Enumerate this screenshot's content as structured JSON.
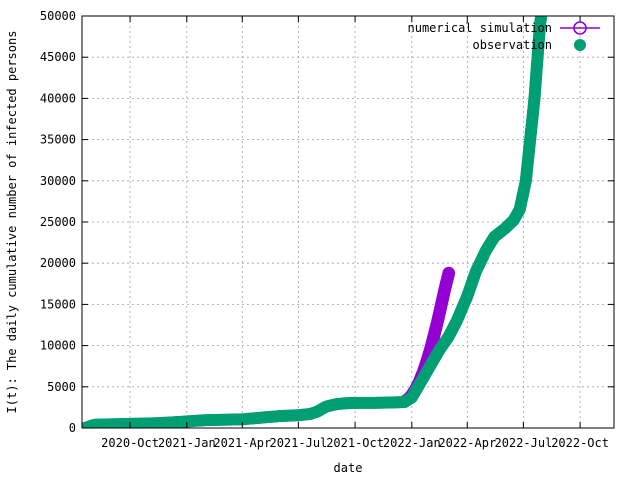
{
  "chart_data": {
    "type": "scatter",
    "title": "",
    "xlabel": "date",
    "ylabel": "I(t): The daily cumulative number of infected persons",
    "xlim": [
      "2020-07-15",
      "2022-11-25"
    ],
    "ylim": [
      0,
      50000
    ],
    "grid": true,
    "legend_position": "top-right",
    "yticks": [
      0,
      5000,
      10000,
      15000,
      20000,
      25000,
      30000,
      35000,
      40000,
      45000,
      50000
    ],
    "xticks": [
      {
        "date": "2020-10-01",
        "label": "2020-Oct"
      },
      {
        "date": "2021-01-01",
        "label": "2021-Jan"
      },
      {
        "date": "2021-04-01",
        "label": "2021-Apr"
      },
      {
        "date": "2021-07-01",
        "label": "2021-Jul"
      },
      {
        "date": "2021-10-01",
        "label": "2021-Oct"
      },
      {
        "date": "2022-01-01",
        "label": "2022-Jan"
      },
      {
        "date": "2022-04-01",
        "label": "2022-Apr"
      },
      {
        "date": "2022-07-01",
        "label": "2022-Jul"
      },
      {
        "date": "2022-10-01",
        "label": "2022-Oct"
      }
    ],
    "series": [
      {
        "name": "numerical simulation",
        "marker": "open-circle",
        "color": "#9400d3",
        "points": [
          [
            "2021-12-20",
            3200
          ],
          [
            "2021-12-26",
            3500
          ],
          [
            "2022-01-01",
            4000
          ],
          [
            "2022-01-07",
            4700
          ],
          [
            "2022-01-13",
            5600
          ],
          [
            "2022-01-19",
            6700
          ],
          [
            "2022-01-25",
            8000
          ],
          [
            "2022-01-31",
            9500
          ],
          [
            "2022-02-06",
            11200
          ],
          [
            "2022-02-12",
            13000
          ],
          [
            "2022-02-18",
            15000
          ],
          [
            "2022-02-24",
            17000
          ],
          [
            "2022-03-02",
            18800
          ]
        ]
      },
      {
        "name": "observation",
        "marker": "filled-circle",
        "color": "#009e73",
        "points": [
          [
            "2020-07-20",
            0
          ],
          [
            "2020-07-27",
            200
          ],
          [
            "2020-08-05",
            400
          ],
          [
            "2020-09-01",
            450
          ],
          [
            "2020-10-01",
            500
          ],
          [
            "2020-11-01",
            550
          ],
          [
            "2020-12-01",
            650
          ],
          [
            "2021-01-01",
            800
          ],
          [
            "2021-02-01",
            950
          ],
          [
            "2021-03-01",
            1000
          ],
          [
            "2021-04-01",
            1050
          ],
          [
            "2021-05-01",
            1250
          ],
          [
            "2021-06-01",
            1450
          ],
          [
            "2021-07-01",
            1550
          ],
          [
            "2021-07-20",
            1700
          ],
          [
            "2021-08-01",
            2000
          ],
          [
            "2021-08-15",
            2600
          ],
          [
            "2021-09-01",
            2900
          ],
          [
            "2021-09-15",
            3000
          ],
          [
            "2021-10-01",
            3050
          ],
          [
            "2021-11-01",
            3050
          ],
          [
            "2021-12-01",
            3100
          ],
          [
            "2021-12-20",
            3150
          ],
          [
            "2022-01-01",
            3700
          ],
          [
            "2022-01-15",
            5500
          ],
          [
            "2022-02-01",
            7700
          ],
          [
            "2022-02-15",
            9500
          ],
          [
            "2022-03-01",
            11000
          ],
          [
            "2022-03-15",
            13000
          ],
          [
            "2022-04-01",
            16000
          ],
          [
            "2022-04-15",
            19000
          ],
          [
            "2022-05-01",
            21500
          ],
          [
            "2022-05-15",
            23200
          ],
          [
            "2022-06-01",
            24200
          ],
          [
            "2022-06-15",
            25200
          ],
          [
            "2022-06-25",
            26500
          ],
          [
            "2022-07-05",
            30000
          ],
          [
            "2022-07-12",
            35000
          ],
          [
            "2022-07-19",
            40000
          ],
          [
            "2022-07-24",
            45000
          ],
          [
            "2022-07-28",
            49000
          ],
          [
            "2022-07-30",
            50000
          ]
        ]
      }
    ]
  },
  "colors": {
    "simulation": "#9400d3",
    "observation": "#009e73",
    "grid": "#a0a0a0"
  }
}
